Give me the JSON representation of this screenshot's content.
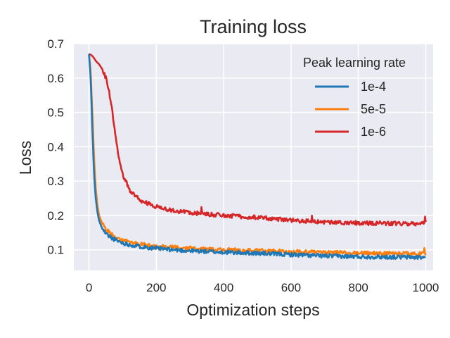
{
  "chart_data": {
    "type": "line",
    "title": "Training loss",
    "xlabel": "Optimization steps",
    "ylabel": "Loss",
    "xlim": [
      -45,
      1022
    ],
    "ylim": [
      0.04,
      0.7
    ],
    "xticks": [
      0,
      200,
      400,
      600,
      800,
      1000
    ],
    "xtick_labels": [
      "0",
      "200",
      "400",
      "600",
      "800",
      "1000"
    ],
    "yticks": [
      0.1,
      0.2,
      0.3,
      0.4,
      0.5,
      0.6,
      0.7
    ],
    "ytick_labels": [
      "0.1",
      "0.2",
      "0.3",
      "0.4",
      "0.5",
      "0.6",
      "0.7"
    ],
    "grid": true,
    "background": "#eaeaf2",
    "legend": {
      "title": "Peak learning rate",
      "position": "top-right"
    },
    "x": [
      0,
      5,
      10,
      15,
      20,
      25,
      30,
      40,
      50,
      60,
      70,
      80,
      90,
      100,
      120,
      150,
      200,
      250,
      300,
      350,
      400,
      500,
      600,
      700,
      800,
      900,
      1000
    ],
    "series": [
      {
        "name": "1e-4",
        "color": "#1f77b4",
        "values": [
          0.67,
          0.6,
          0.45,
          0.32,
          0.25,
          0.21,
          0.185,
          0.16,
          0.148,
          0.14,
          0.133,
          0.128,
          0.124,
          0.12,
          0.115,
          0.11,
          0.104,
          0.1,
          0.097,
          0.095,
          0.093,
          0.09,
          0.086,
          0.082,
          0.08,
          0.079,
          0.078
        ]
      },
      {
        "name": "5e-5",
        "color": "#ff7f0e",
        "values": [
          0.67,
          0.62,
          0.5,
          0.37,
          0.28,
          0.23,
          0.2,
          0.175,
          0.16,
          0.15,
          0.143,
          0.137,
          0.132,
          0.128,
          0.122,
          0.116,
          0.11,
          0.107,
          0.104,
          0.102,
          0.1,
          0.097,
          0.094,
          0.092,
          0.09,
          0.089,
          0.088
        ]
      },
      {
        "name": "1e-6",
        "color": "#d62728",
        "values": [
          0.67,
          0.668,
          0.664,
          0.658,
          0.65,
          0.645,
          0.64,
          0.625,
          0.6,
          0.56,
          0.5,
          0.42,
          0.36,
          0.32,
          0.275,
          0.245,
          0.225,
          0.215,
          0.208,
          0.204,
          0.2,
          0.194,
          0.186,
          0.18,
          0.178,
          0.177,
          0.176
        ]
      }
    ]
  }
}
